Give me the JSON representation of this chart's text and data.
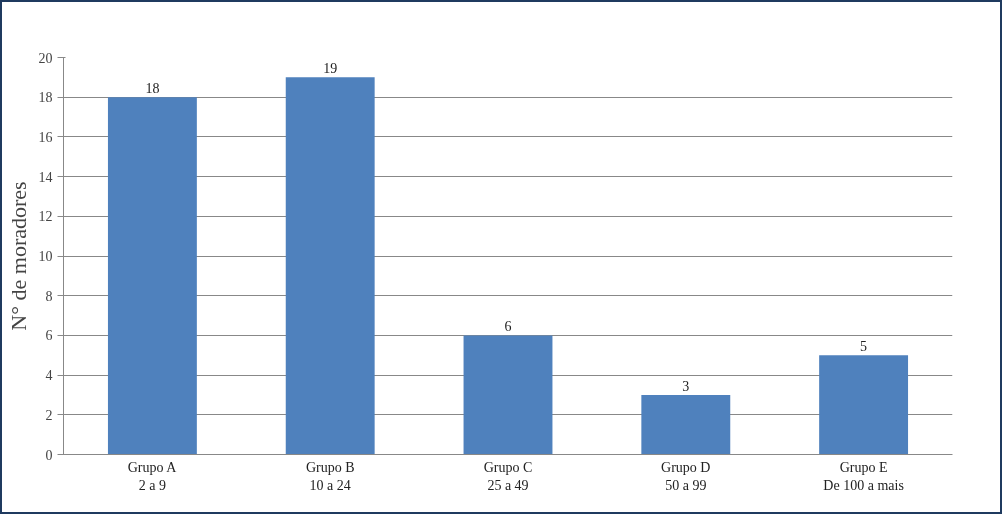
{
  "chart_data": {
    "type": "bar",
    "ylabel": "N° de moradores",
    "categories": [
      "Grupo A\n2 a 9",
      "Grupo B\n10 a 24",
      "Grupo C\n25 a 49",
      "Grupo D\n50 a 99",
      "Grupo E\nDe 100 a mais"
    ],
    "values": [
      18,
      19,
      6,
      3,
      5
    ],
    "color": "#4f81bd",
    "ylim": [
      0,
      20
    ],
    "yticks": [
      0,
      2,
      4,
      6,
      8,
      10,
      12,
      14,
      16,
      18,
      20
    ],
    "grid": "y",
    "data_labels": true
  }
}
